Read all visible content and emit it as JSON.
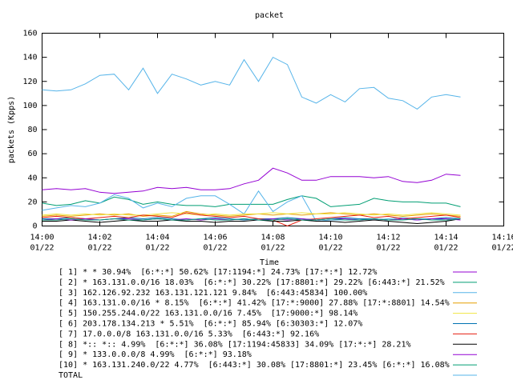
{
  "chart_data": {
    "type": "line",
    "title": "packet",
    "x_label": "Time",
    "y_label": "packets (Kpps)",
    "xlim": [
      0,
      16
    ],
    "xticks": [
      {
        "value": 0,
        "label": "14:00",
        "date": "01/22"
      },
      {
        "value": 2,
        "label": "14:02",
        "date": "01/22"
      },
      {
        "value": 4,
        "label": "14:04",
        "date": "01/22"
      },
      {
        "value": 6,
        "label": "14:06",
        "date": "01/22"
      },
      {
        "value": 8,
        "label": "14:08",
        "date": "01/22"
      },
      {
        "value": 10,
        "label": "14:10",
        "date": "01/22"
      },
      {
        "value": 12,
        "label": "14:12",
        "date": "01/22"
      },
      {
        "value": 14,
        "label": "14:14",
        "date": "01/22"
      },
      {
        "value": 16,
        "label": "14:16",
        "date": "01/22"
      }
    ],
    "ylim": [
      0,
      160
    ],
    "yticks": [
      0,
      20,
      40,
      60,
      80,
      100,
      120,
      140,
      160
    ],
    "grid": false,
    "x": [
      0,
      0.5,
      1,
      1.5,
      2,
      2.5,
      3,
      3.5,
      4,
      4.5,
      5,
      5.5,
      6,
      6.5,
      7,
      7.5,
      8,
      8.5,
      9,
      9.5,
      10,
      10.5,
      11,
      11.5,
      12,
      12.5,
      13,
      13.5,
      14,
      14.5
    ],
    "series": [
      {
        "name": "[ 1] * * 30.94%  [6:*:*] 50.62% [17:1194:*] 24.73% [17:*:*] 12.72%",
        "color": "#9400d3",
        "values": [
          30,
          31,
          30,
          31,
          28,
          27,
          28,
          29,
          32,
          31,
          32,
          30,
          30,
          31,
          35,
          38,
          48,
          44,
          38,
          38,
          41,
          41,
          41,
          40,
          41,
          37,
          36,
          38,
          43,
          42
        ]
      },
      {
        "name": "[ 2] * 163.131.0.0/16 18.03%  [6:*:*] 30.22% [17:8801:*] 29.22% [6:443:*] 21.52%",
        "color": "#009e73",
        "values": [
          19,
          17,
          18,
          21,
          19,
          24,
          22,
          18,
          20,
          18,
          17,
          17,
          16,
          18,
          18,
          18,
          18,
          22,
          25,
          23,
          16,
          17,
          18,
          23,
          21,
          20,
          20,
          19,
          19,
          16
        ]
      },
      {
        "name": "[ 3] 162.126.92.232 163.131.121.121 9.84%  [6:443:45834] 100.00%",
        "color": "#56b4e9",
        "values": [
          13,
          15,
          17,
          16,
          19,
          26,
          23,
          15,
          19,
          16,
          23,
          25,
          25,
          18,
          10,
          29,
          12,
          20,
          25,
          4,
          5,
          5,
          6,
          5,
          6,
          7,
          6,
          6,
          5,
          6
        ]
      },
      {
        "name": "[ 4] 163.131.0.0/16 * 8.15%  [6:*:*] 41.42% [17:*:9000] 27.88% [17:*:8801] 14.54%",
        "color": "#e69f00",
        "values": [
          8,
          9,
          8,
          9,
          10,
          9,
          10,
          8,
          9,
          8,
          12,
          10,
          9,
          8,
          9,
          10,
          9,
          10,
          9,
          10,
          11,
          10,
          9,
          10,
          9,
          8,
          9,
          10,
          9,
          8
        ]
      },
      {
        "name": "[ 5] 150.255.244.0/22 163.131.0.0/16 7.45%  [17:9000:*] 98.14%",
        "color": "#f0e442",
        "values": [
          9,
          10,
          9,
          10,
          9,
          10,
          9,
          9,
          10,
          11,
          10,
          9,
          10,
          9,
          10,
          10,
          11,
          10,
          11,
          10,
          10,
          11,
          10,
          9,
          10,
          9,
          10,
          11,
          10,
          9
        ]
      },
      {
        "name": "[ 6] 203.178.134.213 * 5.51%  [6:*:*] 85.94% [6:30303:*] 12.07%",
        "color": "#0072b2",
        "values": [
          6,
          6,
          7,
          6,
          5,
          6,
          7,
          6,
          7,
          6,
          5,
          6,
          7,
          6,
          5,
          6,
          6,
          7,
          6,
          5,
          6,
          7,
          6,
          6,
          5,
          6,
          5,
          6,
          7,
          6
        ]
      },
      {
        "name": "[ 7] 17.0.0.0/8 163.131.0.0/16 5.33%  [6:443:*] 92.16%",
        "color": "#e51e10",
        "values": [
          7,
          8,
          7,
          6,
          7,
          8,
          7,
          9,
          8,
          7,
          11,
          9,
          8,
          7,
          8,
          6,
          5,
          0,
          5,
          6,
          7,
          8,
          9,
          7,
          8,
          6,
          7,
          8,
          9,
          7
        ]
      },
      {
        "name": "[ 8] *:: *:: 4.99%  [6:*:*] 36.08% [17:1194:45833] 34.09% [17:*:*] 28.21%",
        "color": "#000000",
        "values": [
          4,
          4,
          5,
          4,
          3,
          4,
          5,
          4,
          4,
          5,
          4,
          4,
          3,
          4,
          4,
          5,
          4,
          4,
          5,
          4,
          4,
          3,
          4,
          5,
          4,
          3,
          2,
          3,
          4,
          6
        ]
      },
      {
        "name": "[ 9] * 133.0.0.0/8 4.99%  [6:*:*] 93.18%",
        "color": "#9400d3",
        "values": [
          5,
          6,
          5,
          6,
          5,
          6,
          6,
          5,
          6,
          5,
          6,
          5,
          6,
          5,
          6,
          5,
          6,
          5,
          6,
          5,
          6,
          6,
          5,
          6,
          5,
          6,
          5,
          6,
          6,
          5
        ]
      },
      {
        "name": "[10] * 163.131.240.0/22 4.77%  [6:443:*] 30.08% [17:8801:*] 23.45% [6:*:*] 16.08%",
        "color": "#009e73",
        "values": [
          5,
          5,
          6,
          5,
          5,
          6,
          5,
          5,
          6,
          5,
          5,
          6,
          5,
          5,
          6,
          5,
          5,
          6,
          5,
          5,
          6,
          5,
          5,
          6,
          5,
          5,
          6,
          5,
          5,
          6
        ]
      },
      {
        "name": "TOTAL",
        "color": "#56b4e9",
        "values": [
          113,
          112,
          113,
          118,
          125,
          126,
          113,
          131,
          110,
          126,
          122,
          117,
          120,
          117,
          138,
          120,
          140,
          134,
          107,
          102,
          109,
          103,
          114,
          115,
          106,
          104,
          97,
          107,
          109,
          107
        ]
      }
    ]
  }
}
